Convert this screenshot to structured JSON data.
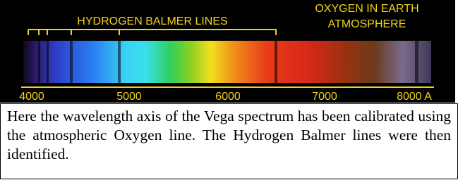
{
  "figure": {
    "balmer_label": "HYDROGEN BALMER LINES",
    "oxygen_label": [
      "OXYGEN IN EARTH",
      "ATMOSPHERE"
    ],
    "axis_labels": [
      "4000",
      "5000",
      "6000",
      "7000",
      "8000 A"
    ]
  },
  "caption": "Here the wavelength axis of the Vega spectrum has been calibrated using the atmospheric Oxygen line. The Hydrogen Balmer lines were then identified."
}
